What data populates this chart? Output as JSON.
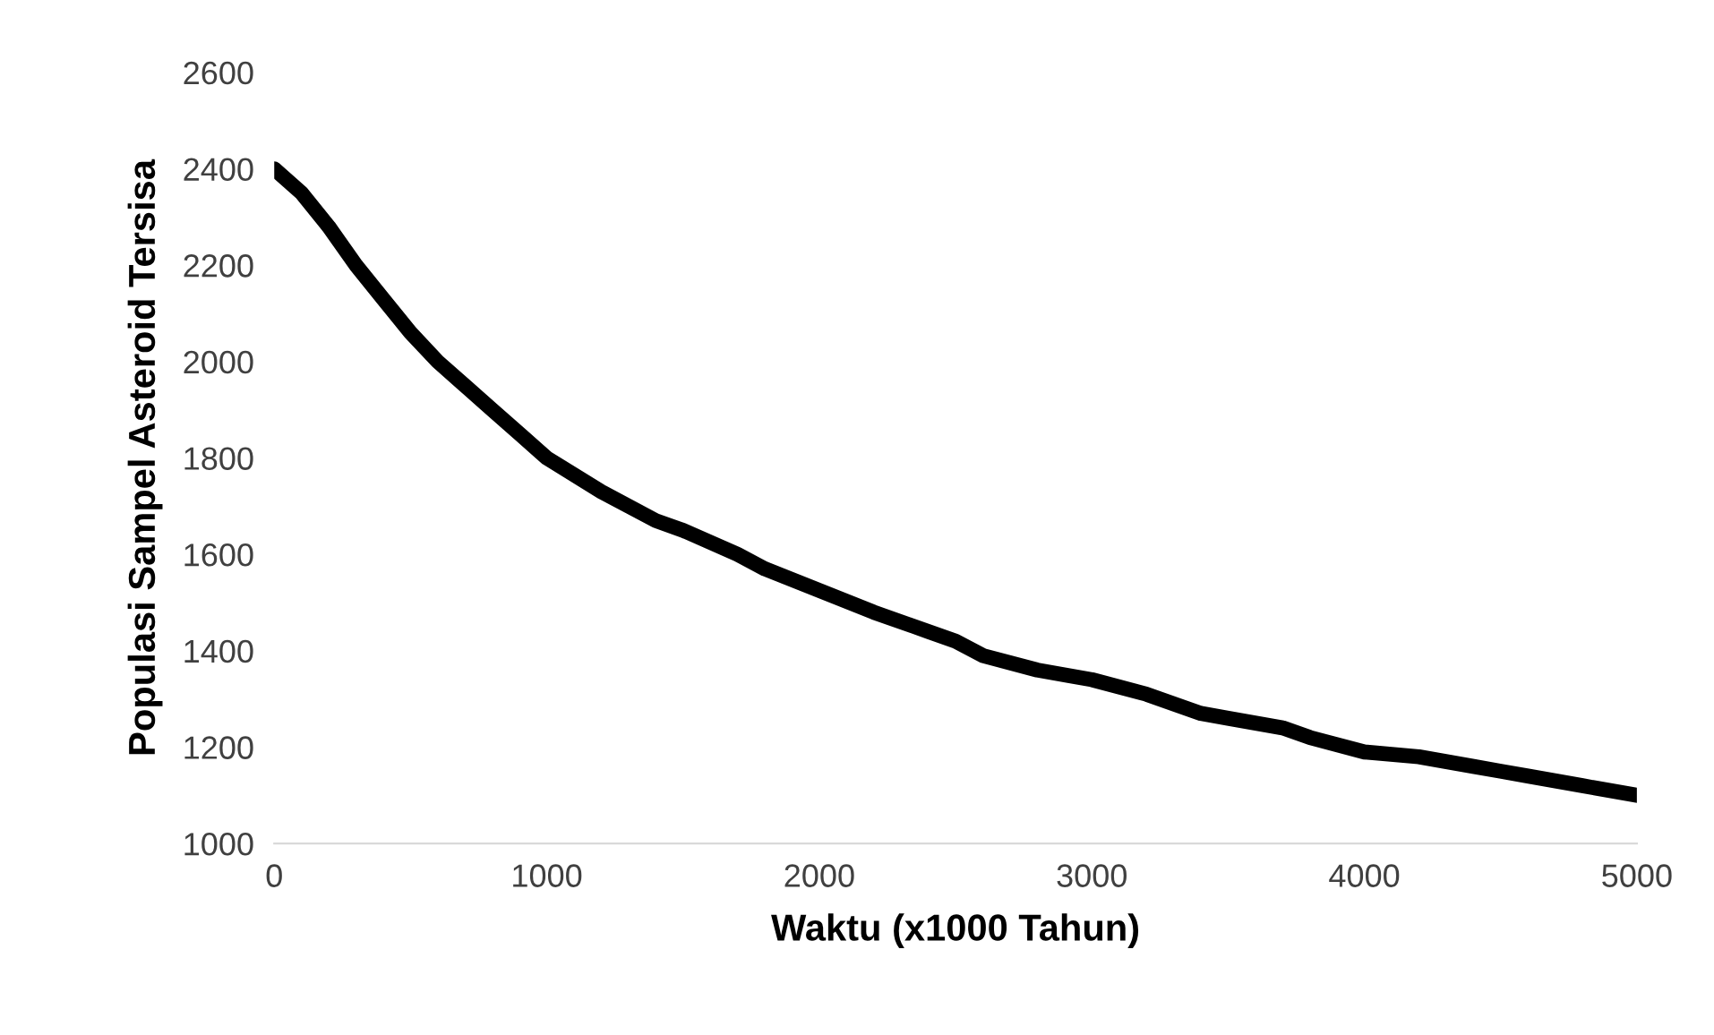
{
  "chart_data": {
    "type": "line",
    "xlabel": "Waktu (x1000 Tahun)",
    "ylabel": "Populasi Sampel Asteroid Tersisa",
    "x": [
      0,
      100,
      200,
      300,
      400,
      500,
      600,
      700,
      800,
      900,
      1000,
      1200,
      1400,
      1500,
      1700,
      1800,
      2000,
      2200,
      2400,
      2500,
      2600,
      2800,
      3000,
      3200,
      3400,
      3500,
      3700,
      3800,
      4000,
      4200,
      4400,
      4500,
      4600,
      4800,
      5000
    ],
    "series": [
      {
        "color": "#000000",
        "values": [
          2400,
          2350,
          2280,
          2200,
          2130,
          2060,
          2000,
          1950,
          1900,
          1850,
          1800,
          1730,
          1670,
          1650,
          1600,
          1570,
          1525,
          1480,
          1440,
          1420,
          1390,
          1360,
          1340,
          1310,
          1270,
          1260,
          1240,
          1220,
          1190,
          1180,
          1160,
          1150,
          1140,
          1120,
          1100
        ]
      }
    ],
    "xlim": [
      0,
      5000
    ],
    "xticks": [
      0,
      1000,
      2000,
      3000,
      4000,
      5000
    ],
    "ylim": [
      1000,
      2600
    ],
    "yticks": [
      1000,
      1200,
      1400,
      1600,
      1800,
      2000,
      2200,
      2400,
      2600
    ],
    "grid": false,
    "legend": false,
    "marker": "none",
    "line_style": "solid"
  }
}
